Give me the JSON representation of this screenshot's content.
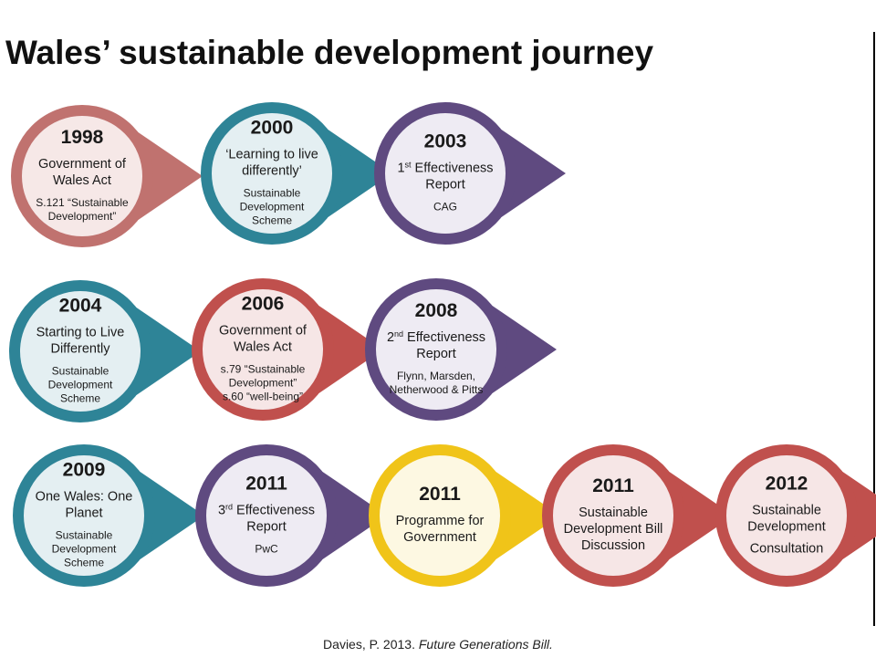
{
  "header": {
    "title": "Wales’ sustainable development journey"
  },
  "nodes": [
    {
      "year": "1998",
      "ring": "#c0726f",
      "fill": "#f6e8e7",
      "title": [
        "Government of",
        "Wales Act"
      ],
      "detail": [
        "S.121 “Sustainable",
        "Development”"
      ]
    },
    {
      "year": "2000",
      "ring": "#2e8497",
      "fill": "#e4eff2",
      "title": [
        "‘Learning to live",
        "differently’"
      ],
      "detail": [
        "Sustainable",
        "Development",
        "Scheme"
      ]
    },
    {
      "year": "2003",
      "ring": "#5f4a80",
      "fill": "#eeebf3",
      "title": [
        {
          "base": "1",
          "sup": "st",
          "rest": " Effectiveness"
        },
        "Report"
      ],
      "detail": [
        "CAG"
      ]
    },
    {
      "year": "2004",
      "ring": "#2e8497",
      "fill": "#e4eff2",
      "title": [
        "Starting to Live",
        "Differently"
      ],
      "detail": [
        "Sustainable",
        "Development",
        "Scheme"
      ]
    },
    {
      "year": "2006",
      "ring": "#c0504d",
      "fill": "#f6e6e6",
      "title": [
        "Government of",
        "Wales Act"
      ],
      "detail": [
        "s.79 “Sustainable",
        "Development”",
        "s.60 “well-being”"
      ]
    },
    {
      "year": "2008",
      "ring": "#5f4a80",
      "fill": "#eeebf3",
      "title": [
        {
          "base": "2",
          "sup": "nd",
          "rest": " Effectiveness"
        },
        "Report"
      ],
      "detail": [
        "Flynn, Marsden,",
        "Netherwood & Pitts"
      ]
    },
    {
      "year": "2009",
      "ring": "#2e8497",
      "fill": "#e4eff2",
      "title": [
        "One Wales: One",
        "Planet"
      ],
      "detail": [
        "Sustainable",
        "Development",
        "Scheme"
      ]
    },
    {
      "year": "2011",
      "ring": "#5f4a80",
      "fill": "#eeebf3",
      "title": [
        {
          "base": "3",
          "sup": "rd",
          "rest": " Effectiveness"
        },
        "Report"
      ],
      "detail": [
        "PwC"
      ]
    },
    {
      "year": "2011",
      "ring": "#f0c419",
      "fill": "#fdf8e2",
      "title": [
        "Programme for",
        "Government"
      ],
      "detail": []
    },
    {
      "year": "2011",
      "ring": "#c0504d",
      "fill": "#f6e6e6",
      "title": [
        "Sustainable",
        "Development Bill",
        "Discussion"
      ],
      "detail": []
    },
    {
      "year": "2012",
      "ring": "#c0504d",
      "fill": "#f6e6e6",
      "title": [
        "Sustainable",
        "Development"
      ],
      "detail": [
        "Consultation"
      ]
    }
  ],
  "footer": {
    "author": "Davies, P. 2013.",
    "work": "Future Generations Bill."
  }
}
